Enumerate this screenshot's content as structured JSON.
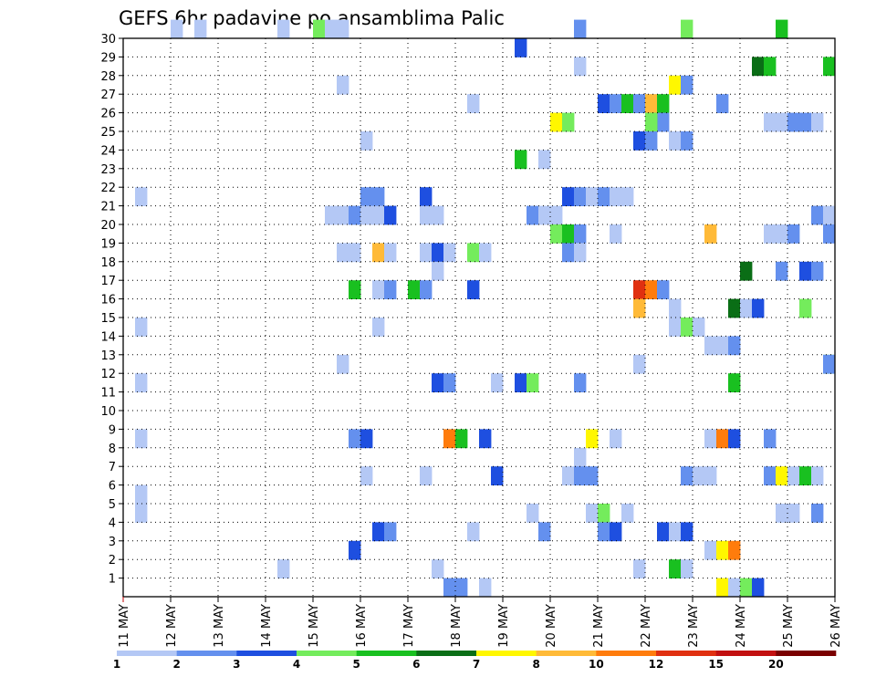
{
  "chart_data": {
    "type": "heatmap",
    "title": "GEFS 6hr padavine po ansamblima Palic",
    "xlabel": "",
    "ylabel": "",
    "x_tick_labels": [
      "11 MAY",
      "12 MAY",
      "13 MAY",
      "14 MAY",
      "15 MAY",
      "16 MAY",
      "17 MAY",
      "18 MAY",
      "19 MAY",
      "20 MAY",
      "21 MAY",
      "22 MAY",
      "23 MAY",
      "24 MAY",
      "25 MAY",
      "26 MAY"
    ],
    "y_tick_labels": [
      1,
      2,
      3,
      4,
      5,
      6,
      7,
      8,
      9,
      10,
      11,
      12,
      13,
      14,
      15,
      16,
      17,
      18,
      19,
      20,
      21,
      22,
      23,
      24,
      25,
      26,
      27,
      28,
      29,
      30
    ],
    "x_steps_per_day": 4,
    "x_range_steps": [
      0,
      60
    ],
    "y_range": [
      0,
      30
    ],
    "grid": true,
    "legend": {
      "placement": "bottom",
      "levels": [
        "1",
        "2",
        "3",
        "4",
        "5",
        "6",
        "7",
        "8",
        "10",
        "12",
        "15",
        "20"
      ],
      "colors": [
        "#b4c8f5",
        "#6490ee",
        "#1e4fe0",
        "#74ec5c",
        "#19c020",
        "#0a6e16",
        "#fff700",
        "#ffba38",
        "#ff7c0c",
        "#e03010",
        "#c21010",
        "#7a0000"
      ]
    },
    "cells": [
      [
        30,
        0,
        4
      ],
      [
        30,
        0,
        6
      ],
      [
        30,
        0,
        13
      ],
      [
        30,
        0,
        18
      ],
      [
        30,
        3,
        16
      ],
      [
        30,
        1,
        38
      ],
      [
        30,
        3,
        47
      ],
      [
        30,
        4,
        55
      ],
      [
        30,
        0,
        17
      ],
      [
        29,
        2,
        33
      ],
      [
        28,
        0,
        38
      ],
      [
        28,
        5,
        53
      ],
      [
        28,
        4,
        54
      ],
      [
        28,
        4,
        59
      ],
      [
        27,
        0,
        18
      ],
      [
        27,
        6,
        46
      ],
      [
        27,
        1,
        47
      ],
      [
        26,
        0,
        29
      ],
      [
        26,
        2,
        40
      ],
      [
        26,
        1,
        41
      ],
      [
        26,
        4,
        42
      ],
      [
        26,
        1,
        43
      ],
      [
        26,
        0,
        44
      ],
      [
        26,
        7,
        44
      ],
      [
        26,
        4,
        45
      ],
      [
        26,
        1,
        50
      ],
      [
        25,
        6,
        36
      ],
      [
        25,
        3,
        37
      ],
      [
        25,
        1,
        45
      ],
      [
        25,
        4,
        44
      ],
      [
        25,
        3,
        44
      ],
      [
        25,
        0,
        54
      ],
      [
        25,
        0,
        55
      ],
      [
        25,
        1,
        56
      ],
      [
        25,
        1,
        57
      ],
      [
        25,
        0,
        58
      ],
      [
        24,
        0,
        20
      ],
      [
        24,
        2,
        43
      ],
      [
        24,
        1,
        44
      ],
      [
        24,
        0,
        46
      ],
      [
        24,
        1,
        47
      ],
      [
        23,
        4,
        33
      ],
      [
        23,
        0,
        35
      ],
      [
        21,
        0,
        1
      ],
      [
        21,
        1,
        20
      ],
      [
        21,
        1,
        21
      ],
      [
        21,
        2,
        25
      ],
      [
        21,
        2,
        37
      ],
      [
        21,
        1,
        38
      ],
      [
        21,
        0,
        39
      ],
      [
        21,
        1,
        40
      ],
      [
        21,
        0,
        41
      ],
      [
        21,
        0,
        42
      ],
      [
        20,
        0,
        17
      ],
      [
        20,
        0,
        18
      ],
      [
        20,
        1,
        19
      ],
      [
        20,
        0,
        20
      ],
      [
        20,
        0,
        21
      ],
      [
        20,
        2,
        22
      ],
      [
        20,
        0,
        25
      ],
      [
        20,
        0,
        26
      ],
      [
        20,
        1,
        34
      ],
      [
        20,
        0,
        35
      ],
      [
        20,
        0,
        36
      ],
      [
        20,
        1,
        58
      ],
      [
        20,
        0,
        59
      ],
      [
        19,
        3,
        36
      ],
      [
        19,
        4,
        37
      ],
      [
        19,
        1,
        38
      ],
      [
        19,
        0,
        41
      ],
      [
        19,
        7,
        49
      ],
      [
        19,
        0,
        54
      ],
      [
        19,
        0,
        55
      ],
      [
        19,
        1,
        56
      ],
      [
        19,
        1,
        59
      ],
      [
        18,
        0,
        18
      ],
      [
        18,
        0,
        19
      ],
      [
        18,
        7,
        21
      ],
      [
        18,
        0,
        22
      ],
      [
        18,
        0,
        25
      ],
      [
        18,
        2,
        26
      ],
      [
        18,
        0,
        27
      ],
      [
        18,
        3,
        29
      ],
      [
        18,
        0,
        30
      ],
      [
        18,
        1,
        37
      ],
      [
        18,
        0,
        38
      ],
      [
        17,
        0,
        26
      ],
      [
        17,
        5,
        52
      ],
      [
        17,
        1,
        55
      ],
      [
        17,
        2,
        57
      ],
      [
        17,
        1,
        58
      ],
      [
        16,
        4,
        19
      ],
      [
        16,
        0,
        21
      ],
      [
        16,
        1,
        22
      ],
      [
        16,
        4,
        24
      ],
      [
        16,
        1,
        25
      ],
      [
        16,
        2,
        29
      ],
      [
        16,
        9,
        43
      ],
      [
        16,
        8,
        44
      ],
      [
        16,
        1,
        45
      ],
      [
        15,
        7,
        43
      ],
      [
        15,
        0,
        46
      ],
      [
        15,
        5,
        51
      ],
      [
        15,
        0,
        52
      ],
      [
        15,
        2,
        53
      ],
      [
        15,
        3,
        57
      ],
      [
        14,
        0,
        1
      ],
      [
        14,
        0,
        21
      ],
      [
        14,
        0,
        46
      ],
      [
        14,
        3,
        47
      ],
      [
        14,
        0,
        48
      ],
      [
        13,
        0,
        49
      ],
      [
        13,
        0,
        50
      ],
      [
        13,
        1,
        51
      ],
      [
        12,
        0,
        18
      ],
      [
        12,
        0,
        43
      ],
      [
        12,
        3,
        59
      ],
      [
        12,
        1,
        59
      ],
      [
        11,
        0,
        1
      ],
      [
        11,
        2,
        26
      ],
      [
        11,
        1,
        27
      ],
      [
        11,
        0,
        31
      ],
      [
        11,
        2,
        33
      ],
      [
        11,
        3,
        34
      ],
      [
        11,
        1,
        38
      ],
      [
        11,
        4,
        51
      ],
      [
        8,
        0,
        1
      ],
      [
        8,
        1,
        19
      ],
      [
        8,
        2,
        20
      ],
      [
        8,
        8,
        27
      ],
      [
        8,
        4,
        28
      ],
      [
        8,
        2,
        30
      ],
      [
        8,
        6,
        39
      ],
      [
        8,
        0,
        41
      ],
      [
        8,
        0,
        49
      ],
      [
        8,
        8,
        50
      ],
      [
        8,
        2,
        51
      ],
      [
        8,
        1,
        54
      ],
      [
        7,
        0,
        38
      ],
      [
        6,
        0,
        20
      ],
      [
        6,
        0,
        25
      ],
      [
        6,
        2,
        31
      ],
      [
        6,
        0,
        37
      ],
      [
        6,
        1,
        38
      ],
      [
        6,
        1,
        39
      ],
      [
        6,
        1,
        47
      ],
      [
        6,
        0,
        48
      ],
      [
        6,
        0,
        49
      ],
      [
        6,
        1,
        54
      ],
      [
        6,
        6,
        55
      ],
      [
        6,
        0,
        56
      ],
      [
        6,
        4,
        57
      ],
      [
        6,
        0,
        58
      ],
      [
        5,
        0,
        1
      ],
      [
        4,
        0,
        1
      ],
      [
        4,
        0,
        34
      ],
      [
        4,
        0,
        39
      ],
      [
        4,
        3,
        40
      ],
      [
        4,
        0,
        42
      ],
      [
        4,
        0,
        55
      ],
      [
        4,
        0,
        56
      ],
      [
        4,
        1,
        58
      ],
      [
        3,
        2,
        21
      ],
      [
        3,
        1,
        22
      ],
      [
        3,
        0,
        29
      ],
      [
        3,
        1,
        35
      ],
      [
        3,
        1,
        40
      ],
      [
        3,
        2,
        41
      ],
      [
        3,
        2,
        45
      ],
      [
        3,
        0,
        46
      ],
      [
        3,
        2,
        47
      ],
      [
        2,
        2,
        19
      ],
      [
        2,
        0,
        49
      ],
      [
        2,
        6,
        50
      ],
      [
        2,
        8,
        51
      ],
      [
        1,
        0,
        13
      ],
      [
        1,
        0,
        26
      ],
      [
        1,
        0,
        43
      ],
      [
        1,
        4,
        46
      ],
      [
        1,
        0,
        47
      ],
      [
        0,
        1,
        27
      ],
      [
        0,
        1,
        28
      ],
      [
        0,
        0,
        30
      ],
      [
        0,
        6,
        50
      ],
      [
        0,
        0,
        51
      ],
      [
        0,
        3,
        52
      ],
      [
        0,
        2,
        53
      ]
    ]
  }
}
